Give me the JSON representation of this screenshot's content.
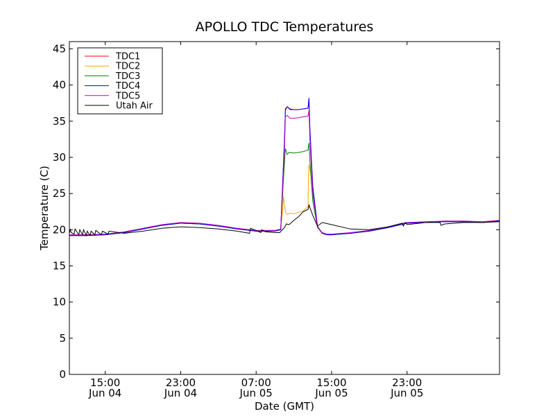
{
  "chart_data": {
    "type": "line",
    "title": "APOLLO TDC Temperatures",
    "xlabel": "Date (GMT)",
    "ylabel": "Temperature (C)",
    "ylim": [
      0,
      46
    ],
    "xlim": [
      11.2,
      56.8
    ],
    "yticks": [
      0,
      5,
      10,
      15,
      20,
      25,
      30,
      35,
      40,
      45
    ],
    "xticks": [
      {
        "x": 15,
        "time": "15:00",
        "date": "Jun 04"
      },
      {
        "x": 23,
        "time": "23:00",
        "date": "Jun 04"
      },
      {
        "x": 31,
        "time": "07:00",
        "date": "Jun 05"
      },
      {
        "x": 39,
        "time": "15:00",
        "date": "Jun 05"
      },
      {
        "x": 47,
        "time": "23:00",
        "date": "Jun 05"
      }
    ],
    "grid": false,
    "legend_position": "upper-left",
    "series": [
      {
        "name": "TDC1",
        "color": "#ff0000",
        "x": [
          11.2,
          13,
          15,
          17,
          19,
          21,
          23,
          25,
          27,
          29,
          31,
          33,
          33.6,
          34.0,
          34.1,
          34.3,
          34.6,
          35,
          35.5,
          36,
          36.5,
          36.6,
          36.7,
          37,
          37.5,
          38,
          38.5,
          39,
          41,
          43,
          45,
          47,
          49,
          51,
          53,
          55,
          56.8
        ],
        "y": [
          19.2,
          19.2,
          19.3,
          19.6,
          20.1,
          20.6,
          20.9,
          20.8,
          20.5,
          20.1,
          19.8,
          19.8,
          20.0,
          32.0,
          36.5,
          37.0,
          36.7,
          36.6,
          36.6,
          36.7,
          36.8,
          38.2,
          34.0,
          26.0,
          20.5,
          19.5,
          19.3,
          19.3,
          19.5,
          19.8,
          20.3,
          20.9,
          21.0,
          21.1,
          21.1,
          21.0,
          21.2
        ]
      },
      {
        "name": "TDC2",
        "color": "#ffa500",
        "x": [
          11.2,
          13,
          15,
          17,
          19,
          21,
          23,
          25,
          27,
          29,
          31,
          33,
          33.6,
          33.8,
          33.9,
          34.1,
          34.3,
          34.7,
          35,
          35.5,
          36,
          36.5,
          36.55,
          36.6,
          36.8,
          37.2,
          37.5,
          38,
          38.5,
          39,
          41,
          43,
          45,
          47,
          49,
          51,
          53,
          55,
          56.8
        ],
        "y": [
          19.3,
          19.3,
          19.4,
          19.6,
          20.1,
          20.6,
          20.9,
          20.8,
          20.5,
          20.1,
          19.8,
          19.8,
          20.0,
          22.5,
          24.6,
          22.4,
          22.1,
          22.3,
          22.2,
          22.4,
          22.6,
          23.2,
          28.0,
          29.0,
          27.5,
          23.0,
          20.5,
          19.6,
          19.3,
          19.3,
          19.5,
          19.8,
          20.3,
          20.9,
          21.0,
          21.1,
          21.1,
          21.0,
          21.2
        ]
      },
      {
        "name": "TDC3",
        "color": "#008000",
        "x": [
          11.2,
          13,
          15,
          17,
          19,
          21,
          23,
          25,
          27,
          29,
          31,
          33,
          33.6,
          33.9,
          34.1,
          34.3,
          34.5,
          35,
          35.5,
          36,
          36.5,
          36.6,
          36.7,
          37,
          37.5,
          38,
          38.5,
          39,
          41,
          43,
          45,
          47,
          49,
          51,
          53,
          55,
          56.8
        ],
        "y": [
          19.2,
          19.2,
          19.3,
          19.6,
          20.1,
          20.6,
          20.9,
          20.8,
          20.5,
          20.1,
          19.8,
          19.8,
          20.0,
          27.0,
          31.2,
          30.4,
          30.7,
          30.6,
          30.7,
          30.8,
          31.0,
          32.0,
          29.5,
          24.0,
          20.3,
          19.5,
          19.3,
          19.3,
          19.5,
          19.8,
          20.3,
          20.9,
          21.0,
          21.1,
          21.1,
          21.0,
          21.2
        ]
      },
      {
        "name": "TDC4",
        "color": "#0000ff",
        "x": [
          11.2,
          13,
          15,
          17,
          19,
          21,
          23,
          25,
          27,
          29,
          31,
          33,
          33.6,
          34.0,
          34.1,
          34.3,
          34.6,
          35,
          35.5,
          36,
          36.5,
          36.6,
          36.7,
          37,
          37.5,
          38,
          38.5,
          39,
          41,
          43,
          45,
          47,
          49,
          51,
          53,
          55,
          56.8
        ],
        "y": [
          19.2,
          19.2,
          19.3,
          19.6,
          20.1,
          20.6,
          20.9,
          20.8,
          20.5,
          20.1,
          19.8,
          19.8,
          20.0,
          32.5,
          36.7,
          37.0,
          36.6,
          36.6,
          36.6,
          36.7,
          36.8,
          38.2,
          34.0,
          26.0,
          20.5,
          19.5,
          19.3,
          19.3,
          19.5,
          19.8,
          20.3,
          20.9,
          21.0,
          21.1,
          21.1,
          21.0,
          21.2
        ]
      },
      {
        "name": "TDC5",
        "color": "#bf00bf",
        "x": [
          11.2,
          13,
          15,
          17,
          19,
          21,
          23,
          25,
          27,
          29,
          31,
          33,
          33.6,
          34.0,
          34.1,
          34.3,
          34.6,
          35,
          35.5,
          36,
          36.5,
          36.6,
          36.7,
          37,
          37.5,
          38,
          38.5,
          39,
          41,
          43,
          45,
          47,
          49,
          51,
          53,
          55,
          56.8
        ],
        "y": [
          19.3,
          19.3,
          19.4,
          19.7,
          20.2,
          20.7,
          21.0,
          20.9,
          20.6,
          20.2,
          19.9,
          19.9,
          20.1,
          31.0,
          35.6,
          35.8,
          35.4,
          35.4,
          35.5,
          35.6,
          35.7,
          36.5,
          32.5,
          25.0,
          20.4,
          19.6,
          19.4,
          19.4,
          19.6,
          19.9,
          20.4,
          21.0,
          21.1,
          21.2,
          21.2,
          21.1,
          21.3
        ]
      },
      {
        "name": "Utah Air",
        "color": "#000000",
        "x": [
          11.2,
          11.3,
          11.4,
          11.7,
          11.8,
          12.2,
          12.3,
          12.6,
          12.7,
          13.0,
          13.1,
          13.4,
          13.5,
          13.9,
          14.0,
          14.6,
          14.7,
          15.3,
          15.4,
          17,
          19,
          21,
          23,
          25,
          27,
          29,
          30.3,
          30.4,
          31.5,
          31.6,
          32.0,
          33.0,
          33.5,
          34.0,
          34.2,
          34.5,
          35,
          35.5,
          36,
          36.5,
          36.6,
          37,
          37.5,
          38,
          39,
          41,
          43,
          45,
          46.5,
          46.6,
          46.8,
          47,
          49,
          50.5,
          50.6,
          51,
          53,
          55,
          56.8
        ],
        "y": [
          19.5,
          20.0,
          19.6,
          19.4,
          20.1,
          19.3,
          20.0,
          19.3,
          20.0,
          19.2,
          19.8,
          19.2,
          19.8,
          19.3,
          19.9,
          19.3,
          19.8,
          19.4,
          19.8,
          19.5,
          19.8,
          20.2,
          20.4,
          20.3,
          20.1,
          19.8,
          19.5,
          20.2,
          19.6,
          20.0,
          19.7,
          19.6,
          19.6,
          20.3,
          20.8,
          20.7,
          21.3,
          21.8,
          22.5,
          22.8,
          23.4,
          22.0,
          20.5,
          21.0,
          20.7,
          20.1,
          20.0,
          20.4,
          20.9,
          20.5,
          21.0,
          20.7,
          21.0,
          21.0,
          20.6,
          20.8,
          21.0,
          21.0,
          21.1
        ]
      }
    ]
  }
}
